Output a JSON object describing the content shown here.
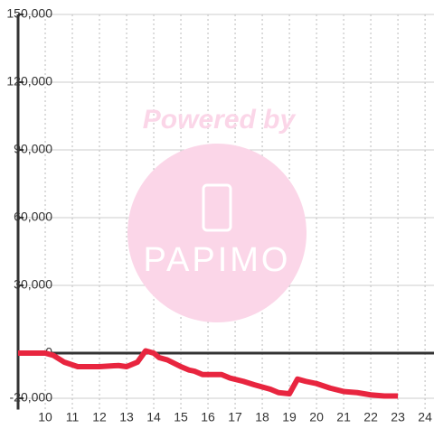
{
  "chart_data": {
    "type": "line",
    "annotations": [
      "Powered by",
      "PAPIMO"
    ],
    "x": [
      9,
      10,
      10.3,
      10.7,
      11.2,
      12,
      12.7,
      13,
      13.4,
      13.7,
      14,
      14.2,
      14.5,
      15,
      15.3,
      15.5,
      15.8,
      16.5,
      16.8,
      17.3,
      17.7,
      18,
      18.3,
      18.6,
      19,
      19.3,
      19.6,
      20,
      20.5,
      21,
      21.5,
      22,
      22.5,
      23
    ],
    "series": [
      {
        "color": "#e8253f",
        "values": [
          0,
          0,
          -1000,
          -4000,
          -6000,
          -6000,
          -5500,
          -6000,
          -4000,
          1000,
          0,
          -2000,
          -3000,
          -6000,
          -7500,
          -8000,
          -9500,
          -9500,
          -11000,
          -12500,
          -14000,
          -15000,
          -16000,
          -17500,
          -18000,
          -11500,
          -12500,
          -13500,
          -15500,
          -17000,
          -17500,
          -18500,
          -19000,
          -19000
        ]
      }
    ],
    "xlim": [
      9,
      24.33
    ],
    "xticks": [
      10,
      11,
      12,
      13,
      14,
      15,
      16,
      17,
      18,
      19,
      20,
      21,
      22,
      23,
      24
    ],
    "ylim": [
      -25000,
      150000
    ],
    "yticks": [
      {
        "value": 150000,
        "label": "150,000"
      },
      {
        "value": 120000,
        "label": "120,000"
      },
      {
        "value": 90000,
        "label": "90,000"
      },
      {
        "value": 60000,
        "label": "60,000"
      },
      {
        "value": 30000,
        "label": "30,000"
      },
      0,
      {
        "value": -20000,
        "label": "-20,000"
      }
    ],
    "grid": true
  }
}
